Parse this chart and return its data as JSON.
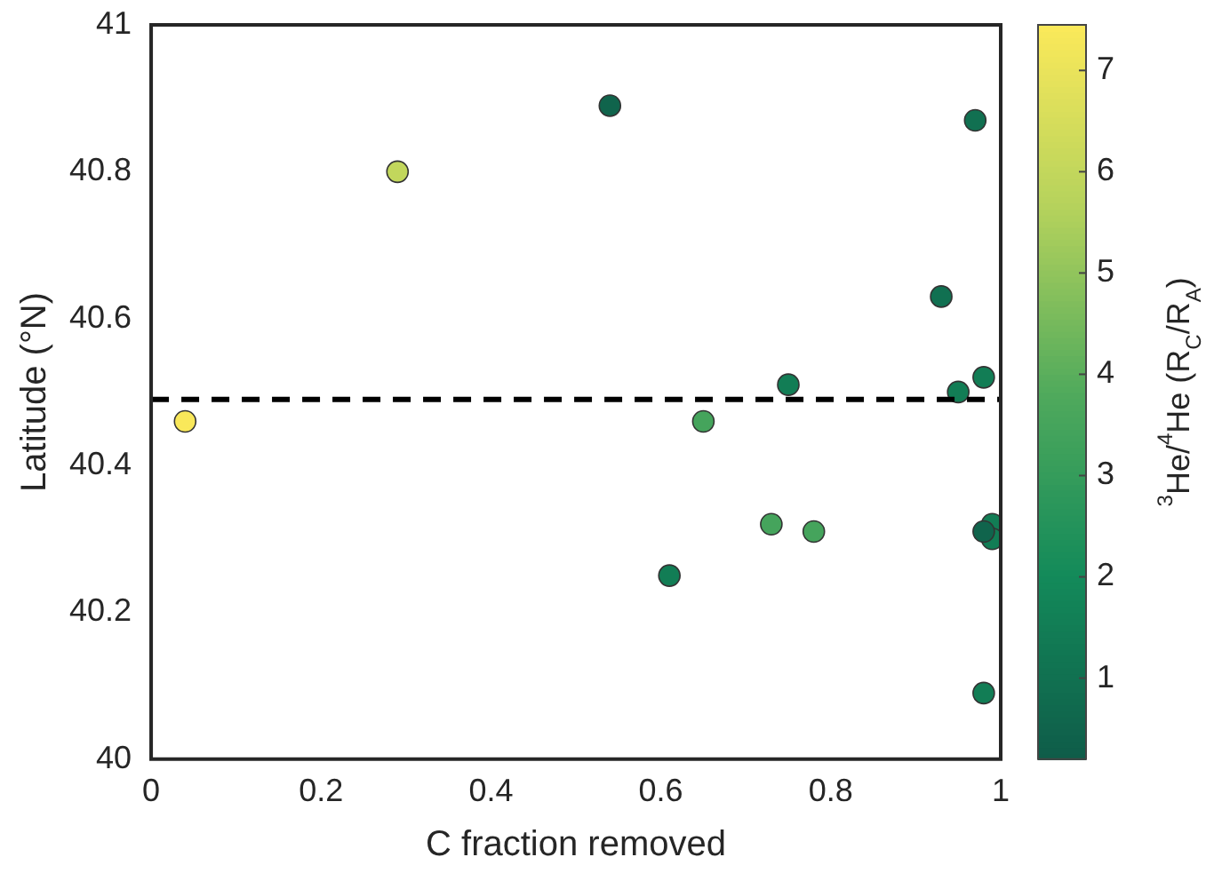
{
  "chart_data": {
    "type": "scatter",
    "xlabel": "C fraction removed",
    "ylabel": "Latitude (°N)",
    "clabel": "$^{3}$He/$^{4}$He (R$_{C}$/R$_{A}$)",
    "x": [
      0.54,
      0.97,
      0.29,
      0.93,
      0.75,
      0.95,
      0.98,
      0.04,
      0.65,
      0.73,
      0.78,
      0.99,
      0.99,
      0.61,
      0.98,
      0.98
    ],
    "values": [
      40.89,
      40.87,
      40.8,
      40.63,
      40.51,
      40.5,
      40.52,
      40.46,
      40.46,
      40.32,
      40.31,
      40.32,
      40.3,
      40.25,
      40.09,
      40.31
    ],
    "cvalues": [
      0.5,
      1,
      6,
      1,
      1.5,
      1.5,
      1.5,
      7.4,
      3.5,
      3.5,
      3.5,
      1.5,
      1.5,
      1.5,
      1.5,
      0.5
    ],
    "clim": [
      0.2,
      7.45
    ],
    "cticks": [
      1,
      2,
      3,
      4,
      5,
      6,
      7
    ],
    "xlim": [
      0,
      1
    ],
    "xticks": [
      0,
      0.2,
      0.4,
      0.6,
      0.8,
      1
    ],
    "ylim": [
      40,
      41
    ],
    "yticks": [
      40,
      40.2,
      40.4,
      40.6,
      40.8,
      41
    ],
    "ref_lines": [
      {
        "axis": "y",
        "value": 40.49,
        "color": "#000000",
        "line_style": "dashed"
      }
    ],
    "marker": "circle",
    "grid": false,
    "legend": false
  }
}
